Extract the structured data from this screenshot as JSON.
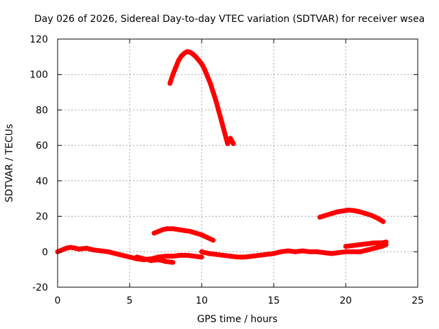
{
  "chart_data": {
    "type": "scatter",
    "title": "Day 026 of 2026, Sidereal Day-to-day VTEC variation (SDTVAR) for receiver wsea",
    "xlabel": "GPS time / hours",
    "ylabel": "SDTVAR / TECUs",
    "xlim": [
      0,
      25
    ],
    "ylim": [
      -20,
      120
    ],
    "xticks": [
      0,
      5,
      10,
      15,
      20,
      25
    ],
    "yticks": [
      -20,
      0,
      20,
      40,
      60,
      80,
      100,
      120
    ],
    "x_tick_labels": [
      "0",
      "5",
      "10",
      "15",
      "20",
      "25"
    ],
    "y_tick_labels": [
      "-20",
      "0",
      "20",
      "40",
      "60",
      "80",
      "100",
      "120"
    ],
    "grid": true,
    "legend": "none",
    "color": "#ff0000",
    "series": [
      {
        "name": "track-high-arc",
        "x": [
          7.8,
          8.0,
          8.2,
          8.4,
          8.6,
          8.8,
          9.0,
          9.2,
          9.4,
          9.6,
          9.8,
          10.0,
          10.2,
          10.4,
          10.6,
          10.8,
          11.0,
          11.2,
          11.4,
          11.6,
          11.8,
          12.0,
          12.2
        ],
        "y": [
          95,
          100,
          104,
          108,
          110.5,
          112,
          113,
          112.5,
          111.5,
          110,
          108,
          106,
          103,
          99,
          95,
          90,
          85,
          79,
          73,
          67,
          61,
          64,
          61
        ]
      },
      {
        "name": "track-hump-7-11",
        "x": [
          6.7,
          7.0,
          7.3,
          7.6,
          8.0,
          8.4,
          8.8,
          9.2,
          9.6,
          10.0,
          10.4,
          10.8
        ],
        "y": [
          10.5,
          11.5,
          12.5,
          13,
          13,
          12.5,
          12,
          11.5,
          10.5,
          9.5,
          8,
          6.5
        ]
      },
      {
        "name": "track-hump-18-23",
        "x": [
          18.2,
          18.6,
          19.0,
          19.4,
          19.8,
          20.2,
          20.6,
          21.0,
          21.4,
          21.8,
          22.2,
          22.6
        ],
        "y": [
          19.5,
          20.5,
          21.5,
          22.5,
          23,
          23.5,
          23.2,
          22.5,
          21.5,
          20.5,
          19,
          17
        ]
      },
      {
        "name": "track-base-0-10",
        "x": [
          0,
          0.3,
          0.6,
          0.9,
          1.2,
          1.5,
          2.0,
          2.5,
          3.0,
          3.5,
          4.0,
          4.5,
          5.0,
          5.5,
          6.0,
          6.5,
          7.0,
          7.5,
          8.0,
          8.5,
          9.0,
          9.5,
          10.0
        ],
        "y": [
          0,
          1,
          2,
          2.5,
          2,
          1.5,
          2,
          1,
          0.5,
          0,
          -1,
          -2,
          -3,
          -4,
          -4.5,
          -4,
          -3,
          -2.5,
          -2.5,
          -2,
          -2,
          -2.5,
          -3
        ]
      },
      {
        "name": "track-dip-5-8",
        "x": [
          5.5,
          6.0,
          6.5,
          7.0,
          7.5,
          8.0
        ],
        "y": [
          -3,
          -4,
          -5,
          -4.5,
          -5.5,
          -6
        ]
      },
      {
        "name": "track-base-10-18",
        "x": [
          10.0,
          10.5,
          11.0,
          11.5,
          12.0,
          12.5,
          13.0,
          13.5,
          14.0,
          14.5,
          15.0,
          15.5,
          16.0,
          16.5,
          17.0,
          17.5,
          18.0
        ],
        "y": [
          0,
          -1,
          -1.5,
          -2,
          -2.5,
          -3,
          -3,
          -2.5,
          -2,
          -1.5,
          -1,
          0,
          0.5,
          0,
          0.5,
          0,
          0
        ]
      },
      {
        "name": "track-base-18-23",
        "x": [
          18.0,
          18.5,
          19.0,
          19.5,
          20.0,
          20.5,
          21.0,
          21.5,
          22.0,
          22.5,
          22.8
        ],
        "y": [
          0,
          -0.5,
          -1,
          -0.5,
          0,
          0,
          0,
          1,
          2,
          3,
          4
        ]
      },
      {
        "name": "track-rise-20-23",
        "x": [
          20.0,
          20.5,
          21.0,
          21.5,
          22.0,
          22.5,
          22.8
        ],
        "y": [
          3,
          3.5,
          4,
          4.5,
          5,
          5,
          5.5
        ]
      }
    ]
  }
}
